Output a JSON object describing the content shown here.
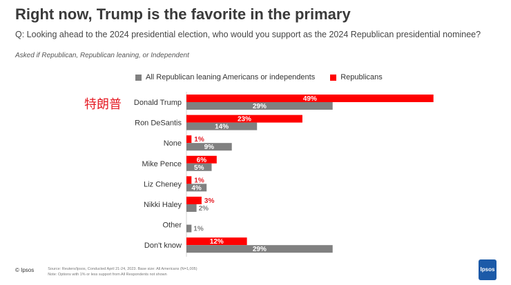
{
  "title": "Right now, Trump is the favorite in the primary",
  "question": "Q: Looking ahead to the 2024 presidential election, who would you support as the 2024 Republican presidential nominee?",
  "note": "Asked if Republican, Republican leaning, or Independent",
  "annotation": "特朗普",
  "footer": {
    "copyright": "© Ipsos",
    "source": "Source: Reuters/Ipsos, Conducted April 21-24, 2023. Base size: All Americans (N=1,005)",
    "note": "Note: Options with 1% or less support from All Respondents not shown",
    "logo": "Ipsos"
  },
  "colors": {
    "republicans": "#ff0000",
    "all": "#808080"
  },
  "chart_data": {
    "type": "bar",
    "orientation": "horizontal",
    "title": "Right now, Trump is the favorite in the primary",
    "categories": [
      "Donald Trump",
      "Ron DeSantis",
      "None",
      "Mike Pence",
      "Liz Cheney",
      "Nikki Haley",
      "Other",
      "Don't know"
    ],
    "series": [
      {
        "name": "Republicans",
        "color": "#ff0000",
        "values": [
          49,
          23,
          1,
          6,
          1,
          3,
          0,
          12
        ]
      },
      {
        "name": "All Republican leaning Americans or independents",
        "color": "#808080",
        "values": [
          29,
          14,
          9,
          5,
          4,
          2,
          1,
          29
        ]
      }
    ],
    "labels": {
      "Republicans": [
        "49%",
        "23%",
        "1%",
        "6%",
        "1%",
        "3%",
        "",
        "12%"
      ],
      "All Republican leaning Americans or independents": [
        "29%",
        "14%",
        "9%",
        "5%",
        "4%",
        "2%",
        "1%",
        "29%"
      ]
    },
    "legend": [
      "All Republican leaning Americans or independents",
      "Republicans"
    ],
    "xlim": [
      0,
      50
    ],
    "grid": false
  }
}
